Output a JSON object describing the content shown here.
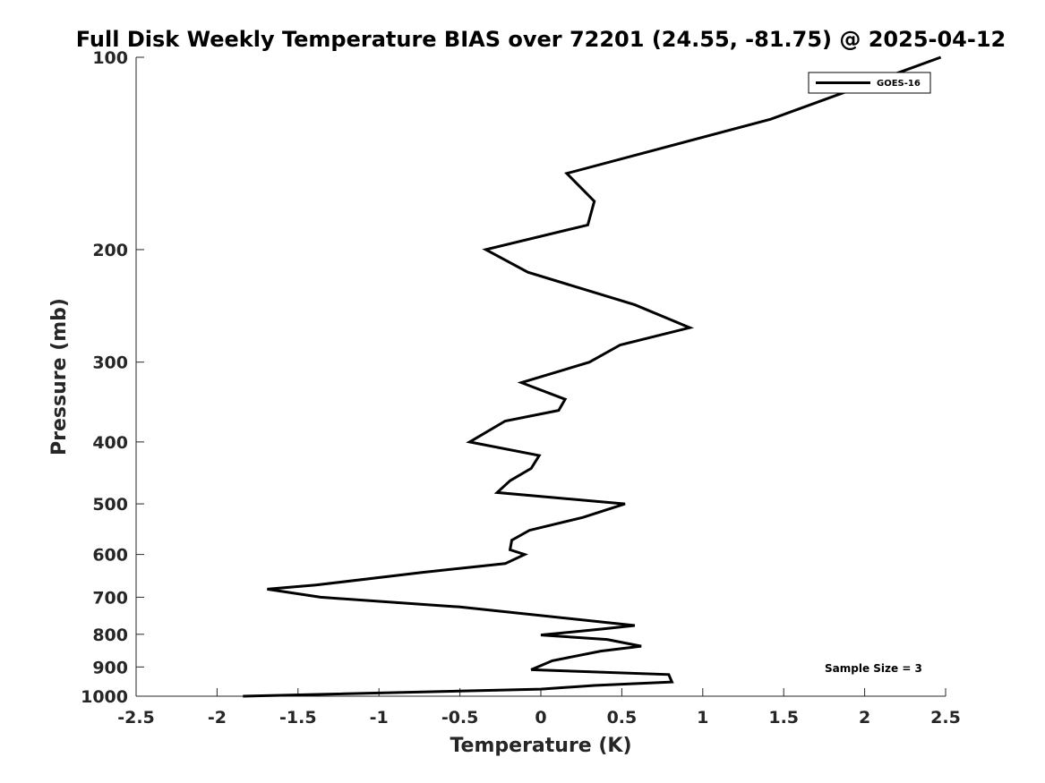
{
  "chart_data": {
    "type": "line",
    "title": "Full Disk Weekly Temperature BIAS over 72201 (24.55, -81.75) @ 2025-04-12",
    "xlabel": "Temperature (K)",
    "ylabel": "Pressure (mb)",
    "xlim": [
      -2.5,
      2.5
    ],
    "ylim": [
      100,
      1000
    ],
    "y_scale": "log",
    "y_reversed": true,
    "grid": false,
    "legend_position": "top-right",
    "x_ticks": [
      -2.5,
      -2,
      -1.5,
      -1,
      -0.5,
      0,
      0.5,
      1,
      1.5,
      2,
      2.5
    ],
    "x_tick_labels": [
      "-2.5",
      "-2",
      "-1.5",
      "-1",
      "-0.5",
      "0",
      "0.5",
      "1",
      "1.5",
      "2",
      "2.5"
    ],
    "y_ticks": [
      100,
      200,
      300,
      400,
      500,
      600,
      700,
      800,
      900,
      1000
    ],
    "y_tick_labels": [
      "100",
      "200",
      "300",
      "400",
      "500",
      "600",
      "700",
      "800",
      "900",
      "1000"
    ],
    "series": [
      {
        "name": "GOES-16",
        "color": "#000000",
        "points": [
          {
            "x": 2.47,
            "p": 100
          },
          {
            "x": 1.42,
            "p": 125
          },
          {
            "x": 0.16,
            "p": 152
          },
          {
            "x": 0.33,
            "p": 168
          },
          {
            "x": 0.29,
            "p": 183
          },
          {
            "x": -0.34,
            "p": 200
          },
          {
            "x": -0.08,
            "p": 217
          },
          {
            "x": 0.58,
            "p": 244
          },
          {
            "x": 0.92,
            "p": 265
          },
          {
            "x": 0.49,
            "p": 282
          },
          {
            "x": 0.3,
            "p": 300
          },
          {
            "x": -0.12,
            "p": 323
          },
          {
            "x": 0.15,
            "p": 343
          },
          {
            "x": 0.11,
            "p": 357
          },
          {
            "x": -0.22,
            "p": 371
          },
          {
            "x": -0.44,
            "p": 400
          },
          {
            "x": -0.01,
            "p": 420
          },
          {
            "x": -0.06,
            "p": 440
          },
          {
            "x": -0.19,
            "p": 460
          },
          {
            "x": -0.27,
            "p": 480
          },
          {
            "x": 0.52,
            "p": 500
          },
          {
            "x": 0.26,
            "p": 525
          },
          {
            "x": -0.07,
            "p": 550
          },
          {
            "x": -0.18,
            "p": 570
          },
          {
            "x": -0.19,
            "p": 590
          },
          {
            "x": -0.1,
            "p": 600
          },
          {
            "x": -0.22,
            "p": 620
          },
          {
            "x": -0.73,
            "p": 640
          },
          {
            "x": -1.39,
            "p": 670
          },
          {
            "x": -1.69,
            "p": 680
          },
          {
            "x": -1.36,
            "p": 700
          },
          {
            "x": -0.5,
            "p": 725
          },
          {
            "x": 0.58,
            "p": 775
          },
          {
            "x": 0.38,
            "p": 785
          },
          {
            "x": 0.0,
            "p": 802
          },
          {
            "x": 0.41,
            "p": 815
          },
          {
            "x": 0.62,
            "p": 835
          },
          {
            "x": 0.37,
            "p": 850
          },
          {
            "x": 0.07,
            "p": 880
          },
          {
            "x": -0.06,
            "p": 909
          },
          {
            "x": 0.79,
            "p": 925
          },
          {
            "x": 0.81,
            "p": 950
          },
          {
            "x": 0.33,
            "p": 962
          },
          {
            "x": 0.0,
            "p": 975
          },
          {
            "x": -1.84,
            "p": 1000
          }
        ]
      }
    ],
    "annotations": [
      "Sample Size = 3"
    ]
  }
}
